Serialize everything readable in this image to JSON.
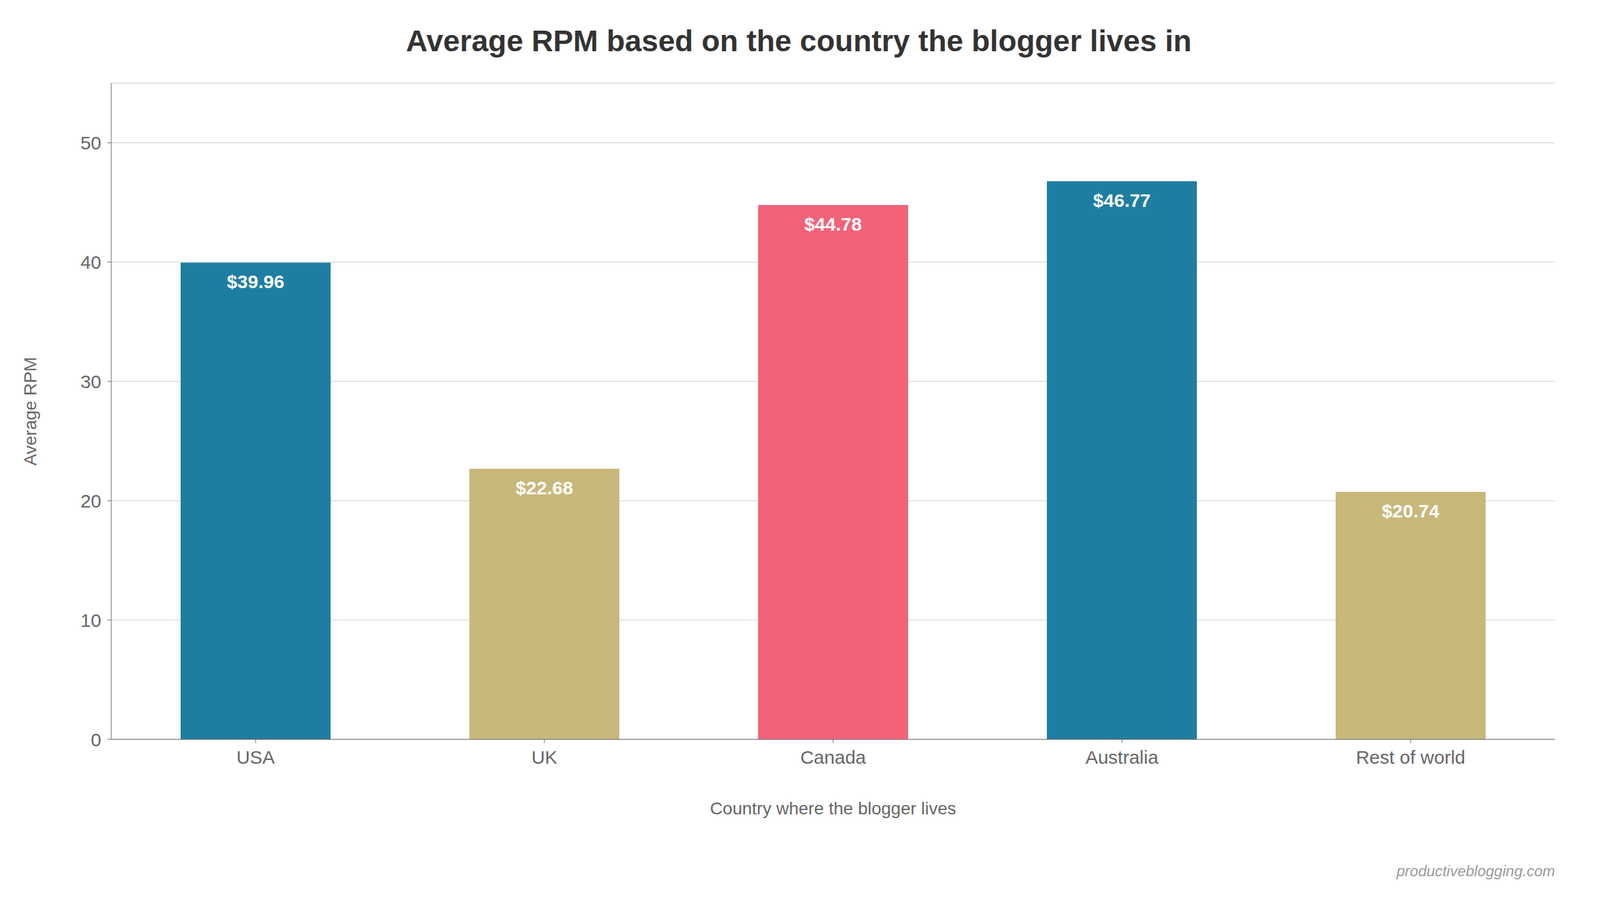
{
  "chart_data": {
    "type": "bar",
    "title": "Average RPM based on the country the blogger lives in",
    "xlabel": "Country where the blogger lives",
    "ylabel": "Average RPM",
    "categories": [
      "USA",
      "UK",
      "Canada",
      "Australia",
      "Rest of world"
    ],
    "values": [
      39.96,
      22.68,
      44.78,
      46.77,
      20.74
    ],
    "value_labels": [
      "$39.96",
      "$22.68",
      "$44.78",
      "$46.77",
      "$20.74"
    ],
    "data_labels": true,
    "colors": [
      "#1e7ea1",
      "#c8b87a",
      "#f2637a",
      "#1e7ea1",
      "#c8b87a"
    ],
    "ylim": [
      0,
      55
    ],
    "yticks": [
      0,
      10,
      20,
      30,
      40,
      50
    ],
    "grid": true,
    "annotations": [
      "productiveblogging.com"
    ]
  }
}
